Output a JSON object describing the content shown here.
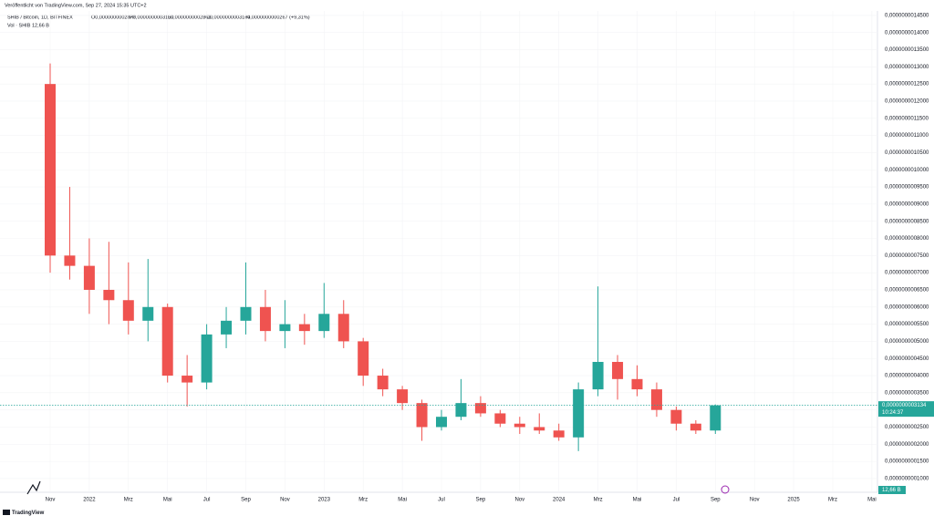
{
  "header": {
    "published": "Veröffentlicht von TradingView.com, Sep 27, 2024 15:35 UTC+2",
    "symbol": "SHIB / Bitcoin, 1D, BITFINEX",
    "ohlc": [
      "O0,0000000002877",
      "H0,0000000003160",
      "L0,0000000002868",
      "C0,0000000003134",
      "+0,0000000000267 (+9,31%)"
    ],
    "volume": "Vol · SHIB",
    "volume_value": "12,66 B"
  },
  "footer": {
    "brand": "TradingView"
  },
  "chart_data": {
    "type": "candlestick",
    "categories": [
      "Nov",
      null,
      "2022",
      null,
      "Mrz",
      null,
      "Mai",
      null,
      "Jul",
      null,
      "Sep",
      null,
      "Nov",
      null,
      "2023",
      null,
      "Mrz",
      null,
      "Mai",
      null,
      "Jul",
      null,
      "Sep",
      null,
      "Nov",
      null,
      "2024",
      null,
      "Mrz",
      null,
      "Mai",
      null,
      "Jul",
      null,
      "Sep",
      null,
      "Nov",
      null,
      "2025",
      null,
      "Mrz",
      null,
      "Mai",
      null
    ],
    "open": [
      1.25e-09,
      7.5e-10,
      7.2e-10,
      6.5e-10,
      6.2e-10,
      5.6e-10,
      6e-10,
      4e-10,
      3.8e-10,
      5.2e-10,
      5.6e-10,
      6e-10,
      5.3e-10,
      5.5e-10,
      5.3e-10,
      5.8e-10,
      5e-10,
      4e-10,
      3.6e-10,
      3.2e-10,
      2.5e-10,
      2.8e-10,
      3.2e-10,
      2.9e-10,
      2.6e-10,
      2.5e-10,
      2.4e-10,
      2.2e-10,
      3.6e-10,
      4.4e-10,
      3.9e-10,
      3.6e-10,
      3e-10,
      2.6e-10,
      2.4e-10,
      null,
      null,
      null,
      null,
      null,
      null,
      null,
      null,
      null
    ],
    "high": [
      1.31e-09,
      9.5e-10,
      8e-10,
      7.9e-10,
      7.3e-10,
      7.4e-10,
      6.1e-10,
      4.6e-10,
      5.5e-10,
      6e-10,
      7.3e-10,
      6.5e-10,
      6.2e-10,
      5.8e-10,
      6.7e-10,
      6.2e-10,
      5.1e-10,
      4.2e-10,
      3.7e-10,
      3.3e-10,
      3e-10,
      3.9e-10,
      3.4e-10,
      3e-10,
      2.8e-10,
      2.9e-10,
      2.6e-10,
      3.8e-10,
      6.6e-10,
      4.6e-10,
      4.3e-10,
      3.8e-10,
      3.1e-10,
      2.7e-10,
      3.16e-10,
      null,
      null,
      null,
      null,
      null,
      null,
      null,
      null,
      null
    ],
    "low": [
      7e-10,
      6.8e-10,
      5.8e-10,
      5.5e-10,
      5.2e-10,
      5e-10,
      3.8e-10,
      3.1e-10,
      3.6e-10,
      4.8e-10,
      5.2e-10,
      5e-10,
      4.8e-10,
      4.9e-10,
      5.1e-10,
      4.8e-10,
      3.7e-10,
      3.4e-10,
      3e-10,
      2.1e-10,
      2.4e-10,
      2.7e-10,
      2.8e-10,
      2.5e-10,
      2.3e-10,
      2.3e-10,
      2.1e-10,
      1.8e-10,
      3.4e-10,
      3.3e-10,
      3.4e-10,
      2.8e-10,
      2.4e-10,
      2.3e-10,
      2.3e-10,
      null,
      null,
      null,
      null,
      null,
      null,
      null,
      null,
      null
    ],
    "close": [
      7.5e-10,
      7.2e-10,
      6.5e-10,
      6.2e-10,
      5.6e-10,
      6e-10,
      4e-10,
      3.8e-10,
      5.2e-10,
      5.6e-10,
      6e-10,
      5.3e-10,
      5.5e-10,
      5.3e-10,
      5.8e-10,
      5e-10,
      4e-10,
      3.6e-10,
      3.2e-10,
      2.5e-10,
      2.8e-10,
      3.2e-10,
      2.9e-10,
      2.6e-10,
      2.5e-10,
      2.4e-10,
      2.2e-10,
      3.6e-10,
      4.4e-10,
      3.9e-10,
      3.6e-10,
      3e-10,
      2.6e-10,
      2.4e-10,
      3.134e-10,
      null,
      null,
      null,
      null,
      null,
      null,
      null,
      null,
      null
    ],
    "up_color": "#26a69a",
    "down_color": "#ef5350",
    "last_price": {
      "value": 3.134e-10,
      "label": "0,0000000003134"
    },
    "countdown": "10:24:37",
    "ylim": [
      6e-11,
      1.463e-09
    ],
    "yticks": [
      {
        "value": 1e-10,
        "label": "0,0000000001000"
      },
      {
        "value": 1.5e-10,
        "label": "0,0000000001500"
      },
      {
        "value": 2e-10,
        "label": "0,0000000002000"
      },
      {
        "value": 2.5e-10,
        "label": "0,0000000002500"
      },
      {
        "value": 3e-10,
        "label": "0,0000000003000"
      },
      {
        "value": 3.5e-10,
        "label": "0,0000000003500"
      },
      {
        "value": 4e-10,
        "label": "0,0000000004000"
      },
      {
        "value": 4.5e-10,
        "label": "0,0000000004500"
      },
      {
        "value": 5e-10,
        "label": "0,0000000005000"
      },
      {
        "value": 5.5e-10,
        "label": "0,0000000005500"
      },
      {
        "value": 6e-10,
        "label": "0,0000000006000"
      },
      {
        "value": 6.5e-10,
        "label": "0,0000000006500"
      },
      {
        "value": 7e-10,
        "label": "0,0000000007000"
      },
      {
        "value": 7.5e-10,
        "label": "0,0000000007500"
      },
      {
        "value": 8e-10,
        "label": "0,0000000008000"
      },
      {
        "value": 8.5e-10,
        "label": "0,0000000008500"
      },
      {
        "value": 9e-10,
        "label": "0,0000000009000"
      },
      {
        "value": 9.5e-10,
        "label": "0,0000000009500"
      },
      {
        "value": 1e-09,
        "label": "0,0000000010000"
      },
      {
        "value": 1.05e-09,
        "label": "0,0000000010500"
      },
      {
        "value": 1.1e-09,
        "label": "0,0000000011000"
      },
      {
        "value": 1.15e-09,
        "label": "0,0000000011500"
      },
      {
        "value": 1.2e-09,
        "label": "0,0000000012000"
      },
      {
        "value": 1.25e-09,
        "label": "0,0000000012500"
      },
      {
        "value": 1.3e-09,
        "label": "0,0000000013000"
      },
      {
        "value": 1.35e-09,
        "label": "0,0000000013500"
      },
      {
        "value": 1.4e-09,
        "label": "0,0000000014000"
      },
      {
        "value": 1.45e-09,
        "label": "0,0000000014500"
      }
    ],
    "grid": true
  }
}
